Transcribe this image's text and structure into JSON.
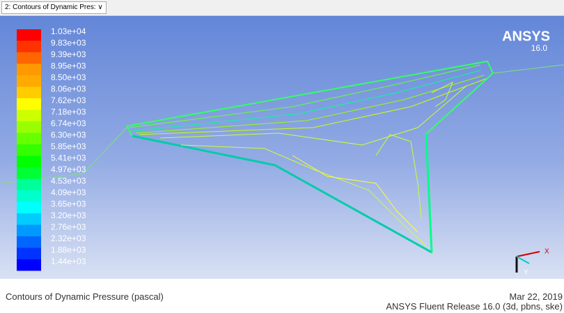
{
  "tab": {
    "title": "2: Contours of Dynamic Pres:"
  },
  "logo": {
    "name": "ANSYS",
    "version": "16.0"
  },
  "legend": {
    "entries": [
      {
        "label": "1.03e+04",
        "color": "#ff0000"
      },
      {
        "label": "9.83e+03",
        "color": "#ff3300"
      },
      {
        "label": "9.39e+03",
        "color": "#ff6600"
      },
      {
        "label": "8.95e+03",
        "color": "#ff9900"
      },
      {
        "label": "8.50e+03",
        "color": "#ffaa00"
      },
      {
        "label": "8.06e+03",
        "color": "#ffcc00"
      },
      {
        "label": "7.62e+03",
        "color": "#ffff00"
      },
      {
        "label": "7.18e+03",
        "color": "#ccff00"
      },
      {
        "label": "6.74e+03",
        "color": "#99ff00"
      },
      {
        "label": "6.30e+03",
        "color": "#66ff00"
      },
      {
        "label": "5.85e+03",
        "color": "#33ff00"
      },
      {
        "label": "5.41e+03",
        "color": "#00ff00"
      },
      {
        "label": "4.97e+03",
        "color": "#00ff33"
      },
      {
        "label": "4.53e+03",
        "color": "#00ff99"
      },
      {
        "label": "4.09e+03",
        "color": "#00ffcc"
      },
      {
        "label": "3.65e+03",
        "color": "#00ffff"
      },
      {
        "label": "3.20e+03",
        "color": "#00ccff"
      },
      {
        "label": "2.76e+03",
        "color": "#0099ff"
      },
      {
        "label": "2.32e+03",
        "color": "#0066ff"
      },
      {
        "label": "1.88e+03",
        "color": "#0033ff"
      },
      {
        "label": "1.44e+03",
        "color": "#0000ff"
      }
    ]
  },
  "footer": {
    "caption": "Contours of Dynamic Pressure (pascal)",
    "date": "Mar 22, 2019",
    "release": "ANSYS Fluent Release 16.0 (3d, pbns, ske)"
  }
}
